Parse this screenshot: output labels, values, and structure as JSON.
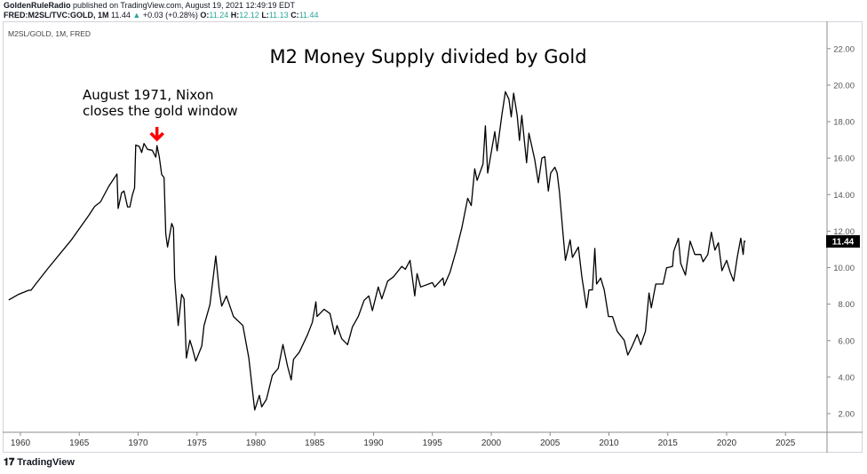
{
  "header": {
    "publisher": "GoldenRuleRadio",
    "published_text": "published on TradingView.com, August 19, 2021 12:49:19 EDT",
    "symbol": "FRED:M2SL/TVC:GOLD, 1M",
    "last": "11.44",
    "change": "+0.03 (+0.28%)",
    "o_label": "O:",
    "o": "11.24",
    "h_label": "H:",
    "h": "12.12",
    "l_label": "L:",
    "l": "11.13",
    "c_label": "C:",
    "c": "11.44"
  },
  "legend": "M2SL/GOLD, 1M, FRED",
  "brand": "TradingView",
  "colors": {
    "line": "#000000",
    "arrow": "#ff0000",
    "up": "#26a69a"
  },
  "chart_data": {
    "type": "line",
    "title": "M2 Money Supply divided by Gold",
    "annotation": {
      "text_line1": "August 1971, Nixon",
      "text_line2": "closes the gold window",
      "x": 1971.6
    },
    "last_value_label": "11.44",
    "xlim": [
      1958.8,
      2028.5
    ],
    "ylim": [
      1.0,
      23.5
    ],
    "x_ticks": [
      "1960",
      "1965",
      "1970",
      "1975",
      "1980",
      "1985",
      "1990",
      "1995",
      "2000",
      "2005",
      "2010",
      "2015",
      "2020",
      "2025"
    ],
    "y_ticks": [
      "2.00",
      "4.00",
      "6.00",
      "8.00",
      "10.00",
      "12.00",
      "14.00",
      "16.00",
      "18.00",
      "20.00",
      "22.00"
    ],
    "series": [
      {
        "name": "M2SL/GOLD",
        "points": [
          [
            1959.0,
            8.23
          ],
          [
            1959.8,
            8.52
          ],
          [
            1960.7,
            8.76
          ],
          [
            1960.9,
            8.76
          ],
          [
            1961.3,
            9.1
          ],
          [
            1962.3,
            9.93
          ],
          [
            1964.3,
            11.5
          ],
          [
            1965.8,
            12.85
          ],
          [
            1966.3,
            13.35
          ],
          [
            1966.8,
            13.6
          ],
          [
            1967.5,
            14.45
          ],
          [
            1968.2,
            15.13
          ],
          [
            1968.3,
            13.24
          ],
          [
            1968.6,
            14.1
          ],
          [
            1968.8,
            14.2
          ],
          [
            1969.1,
            13.33
          ],
          [
            1969.3,
            13.33
          ],
          [
            1969.5,
            13.96
          ],
          [
            1969.7,
            14.37
          ],
          [
            1969.8,
            16.72
          ],
          [
            1970.1,
            16.64
          ],
          [
            1970.3,
            16.31
          ],
          [
            1970.5,
            16.8
          ],
          [
            1970.8,
            16.48
          ],
          [
            1971.2,
            16.43
          ],
          [
            1971.5,
            16.05
          ],
          [
            1971.6,
            16.69
          ],
          [
            1971.8,
            16.07
          ],
          [
            1972.0,
            15.1
          ],
          [
            1972.2,
            14.94
          ],
          [
            1972.35,
            11.86
          ],
          [
            1972.5,
            11.13
          ],
          [
            1972.85,
            12.42
          ],
          [
            1973.0,
            12.18
          ],
          [
            1973.1,
            9.43
          ],
          [
            1973.4,
            6.83
          ],
          [
            1973.7,
            8.54
          ],
          [
            1973.9,
            8.29
          ],
          [
            1974.1,
            5.05
          ],
          [
            1974.4,
            6.02
          ],
          [
            1974.6,
            5.61
          ],
          [
            1974.9,
            4.88
          ],
          [
            1975.4,
            5.7
          ],
          [
            1975.6,
            6.83
          ],
          [
            1976.1,
            7.97
          ],
          [
            1976.6,
            10.64
          ],
          [
            1976.9,
            8.7
          ],
          [
            1977.1,
            7.89
          ],
          [
            1977.5,
            8.45
          ],
          [
            1978.1,
            7.32
          ],
          [
            1978.9,
            6.83
          ],
          [
            1979.4,
            5.05
          ],
          [
            1979.9,
            2.2
          ],
          [
            1980.3,
            3.0
          ],
          [
            1980.5,
            2.37
          ],
          [
            1980.9,
            2.78
          ],
          [
            1981.4,
            4.1
          ],
          [
            1981.9,
            4.48
          ],
          [
            1982.3,
            5.79
          ],
          [
            1982.7,
            4.58
          ],
          [
            1983.0,
            3.85
          ],
          [
            1983.2,
            4.97
          ],
          [
            1983.7,
            5.37
          ],
          [
            1984.4,
            6.34
          ],
          [
            1984.8,
            7.0
          ],
          [
            1985.1,
            8.13
          ],
          [
            1985.2,
            7.32
          ],
          [
            1985.8,
            7.72
          ],
          [
            1986.3,
            7.48
          ],
          [
            1986.7,
            6.34
          ],
          [
            1986.9,
            6.83
          ],
          [
            1987.3,
            6.1
          ],
          [
            1987.8,
            5.78
          ],
          [
            1988.2,
            6.75
          ],
          [
            1988.7,
            7.32
          ],
          [
            1989.2,
            8.21
          ],
          [
            1989.6,
            8.45
          ],
          [
            1989.9,
            7.64
          ],
          [
            1990.4,
            8.94
          ],
          [
            1990.7,
            8.29
          ],
          [
            1991.2,
            9.26
          ],
          [
            1991.7,
            9.5
          ],
          [
            1992.4,
            10.07
          ],
          [
            1992.7,
            9.91
          ],
          [
            1993.1,
            10.4
          ],
          [
            1993.5,
            8.45
          ],
          [
            1993.7,
            9.67
          ],
          [
            1994.0,
            8.94
          ],
          [
            1995.0,
            9.18
          ],
          [
            1995.2,
            8.94
          ],
          [
            1995.9,
            9.43
          ],
          [
            1996.0,
            9.02
          ],
          [
            1996.5,
            9.75
          ],
          [
            1997.0,
            10.89
          ],
          [
            1997.5,
            12.18
          ],
          [
            1998.0,
            13.8
          ],
          [
            1998.3,
            13.4
          ],
          [
            1998.6,
            15.42
          ],
          [
            1998.8,
            14.78
          ],
          [
            1999.3,
            15.67
          ],
          [
            1999.5,
            17.77
          ],
          [
            1999.7,
            15.18
          ],
          [
            2000.3,
            17.45
          ],
          [
            2000.5,
            16.4
          ],
          [
            2000.9,
            18.34
          ],
          [
            2001.2,
            19.64
          ],
          [
            2001.5,
            19.23
          ],
          [
            2001.7,
            18.26
          ],
          [
            2001.9,
            19.56
          ],
          [
            2002.2,
            18.34
          ],
          [
            2002.4,
            16.97
          ],
          [
            2002.6,
            18.34
          ],
          [
            2003.0,
            15.75
          ],
          [
            2003.2,
            17.37
          ],
          [
            2003.7,
            15.91
          ],
          [
            2004.0,
            14.65
          ],
          [
            2004.3,
            16.0
          ],
          [
            2004.55,
            16.08
          ],
          [
            2004.85,
            14.2
          ],
          [
            2005.05,
            15.18
          ],
          [
            2005.4,
            15.5
          ],
          [
            2005.6,
            15.18
          ],
          [
            2005.8,
            14.13
          ],
          [
            2006.1,
            11.86
          ],
          [
            2006.3,
            10.4
          ],
          [
            2006.7,
            11.53
          ],
          [
            2006.9,
            10.56
          ],
          [
            2007.4,
            11.13
          ],
          [
            2007.7,
            9.5
          ],
          [
            2008.1,
            7.8
          ],
          [
            2008.3,
            8.78
          ],
          [
            2008.6,
            8.78
          ],
          [
            2008.8,
            11.05
          ],
          [
            2008.95,
            9.1
          ],
          [
            2009.3,
            9.43
          ],
          [
            2009.6,
            8.78
          ],
          [
            2009.96,
            7.32
          ],
          [
            2010.3,
            7.32
          ],
          [
            2010.7,
            6.51
          ],
          [
            2011.3,
            6.02
          ],
          [
            2011.6,
            5.21
          ],
          [
            2011.98,
            5.7
          ],
          [
            2012.4,
            6.34
          ],
          [
            2012.7,
            5.78
          ],
          [
            2013.1,
            6.51
          ],
          [
            2013.4,
            8.61
          ],
          [
            2013.6,
            7.8
          ],
          [
            2013.98,
            9.1
          ],
          [
            2014.6,
            9.1
          ],
          [
            2014.9,
            9.99
          ],
          [
            2015.4,
            10.07
          ],
          [
            2015.5,
            10.89
          ],
          [
            2015.9,
            11.61
          ],
          [
            2016.1,
            10.23
          ],
          [
            2016.5,
            9.59
          ],
          [
            2016.9,
            11.45
          ],
          [
            2017.3,
            10.72
          ],
          [
            2017.8,
            10.72
          ],
          [
            2018.0,
            10.32
          ],
          [
            2018.4,
            10.72
          ],
          [
            2018.7,
            11.94
          ],
          [
            2019.0,
            10.96
          ],
          [
            2019.3,
            11.37
          ],
          [
            2019.6,
            9.83
          ],
          [
            2020.0,
            10.4
          ],
          [
            2020.3,
            9.75
          ],
          [
            2020.6,
            9.26
          ],
          [
            2020.9,
            10.56
          ],
          [
            2021.2,
            11.61
          ],
          [
            2021.4,
            10.72
          ],
          [
            2021.5,
            11.45
          ],
          [
            2021.6,
            11.44
          ]
        ]
      }
    ]
  }
}
